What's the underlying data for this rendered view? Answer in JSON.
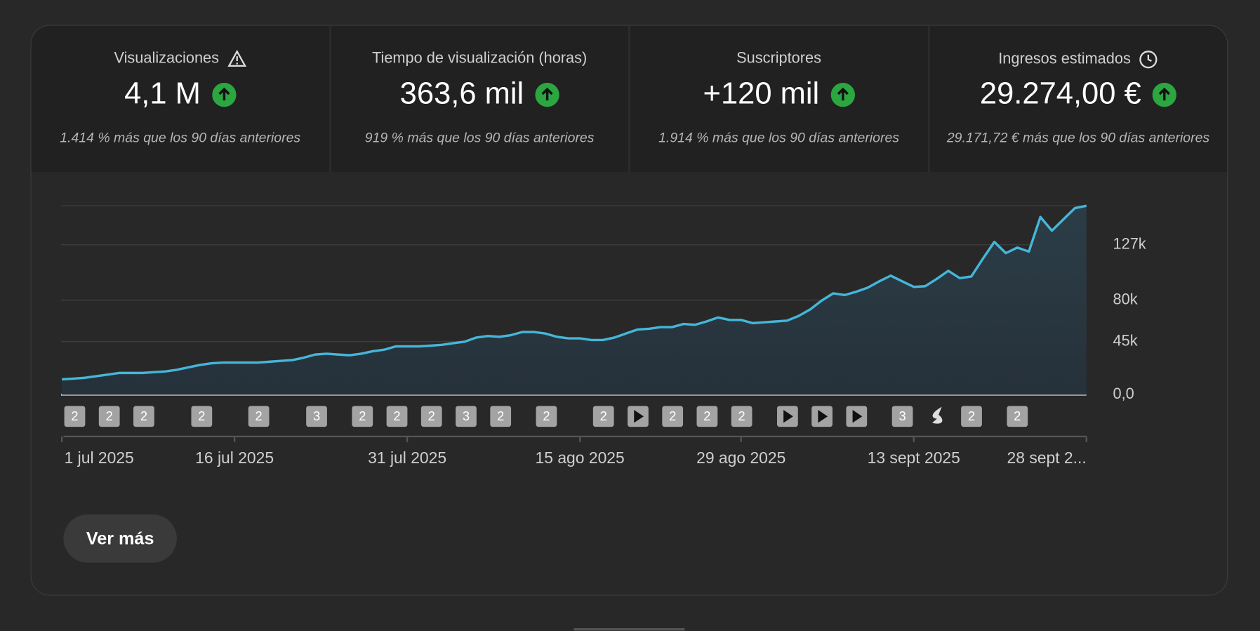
{
  "cards": [
    {
      "title": "Visualizaciones",
      "value": "4,1 M",
      "change": "1.414 % más que los 90 días anteriores"
    },
    {
      "title": "Tiempo de visualización (horas)",
      "value": "363,6 mil",
      "change": "919 % más que los 90 días anteriores"
    },
    {
      "title": "Suscriptores",
      "value": "+120 mil",
      "change": "1.914 % más que los 90 días anteriores"
    },
    {
      "title": "Ingresos estimados",
      "value": "29.274,00 €",
      "change": "29.171,72 € más que los 90 días anteriores"
    }
  ],
  "chart_data": {
    "type": "line",
    "color": "#45b6d9",
    "categories": [
      "1 jul 2025",
      null,
      null,
      null,
      null,
      null,
      null,
      null,
      null,
      null,
      null,
      null,
      null,
      null,
      null,
      "16 jul 2025",
      null,
      null,
      null,
      null,
      null,
      null,
      null,
      null,
      null,
      null,
      null,
      null,
      null,
      null,
      "31 jul 2025",
      null,
      null,
      null,
      null,
      null,
      null,
      null,
      null,
      null,
      null,
      null,
      null,
      null,
      null,
      "15 ago 2025",
      null,
      null,
      null,
      null,
      null,
      null,
      null,
      null,
      null,
      null,
      null,
      null,
      null,
      "29 ago 2025",
      null,
      null,
      null,
      null,
      null,
      null,
      null,
      null,
      null,
      null,
      null,
      null,
      null,
      null,
      "13 sept 2025",
      null,
      null,
      null,
      null,
      null,
      null,
      null,
      null,
      null,
      null,
      null,
      null,
      null,
      null,
      "28 sept 2..."
    ],
    "values": [
      13000,
      13600,
      14300,
      15700,
      17000,
      18400,
      18400,
      18400,
      19100,
      19700,
      21100,
      23200,
      25200,
      26600,
      27200,
      27200,
      27200,
      27200,
      27900,
      28600,
      29300,
      31300,
      34000,
      34700,
      34000,
      33400,
      34700,
      36800,
      38100,
      40900,
      40900,
      40900,
      41500,
      42200,
      43600,
      44900,
      48400,
      49700,
      49000,
      50400,
      53100,
      53100,
      51800,
      49000,
      47700,
      47700,
      46300,
      46300,
      48400,
      51800,
      55200,
      55800,
      57200,
      57200,
      59900,
      59200,
      62000,
      65400,
      63300,
      63300,
      60600,
      61300,
      62000,
      62700,
      66700,
      72200,
      79700,
      85800,
      84400,
      87200,
      90600,
      96000,
      100800,
      96000,
      91300,
      91900,
      98100,
      104900,
      98700,
      100100,
      115100,
      129400,
      119900,
      124600,
      121200,
      150500,
      138900,
      148500,
      158000,
      160000
    ],
    "ylim": [
      0,
      160000
    ],
    "yticks": [
      {
        "value": 0,
        "label": "0,0"
      },
      {
        "value": 45000,
        "label": "45k"
      },
      {
        "value": 80000,
        "label": "80k"
      },
      {
        "value": 127000,
        "label": "127k"
      }
    ],
    "grid": true,
    "markers": [
      "2",
      "2",
      "2",
      "2",
      "2",
      "3",
      "2",
      "2",
      "2",
      "3",
      "2",
      "2",
      "2",
      "2",
      "2",
      "2",
      "3",
      "2",
      "2"
    ]
  },
  "button": "Ver más"
}
